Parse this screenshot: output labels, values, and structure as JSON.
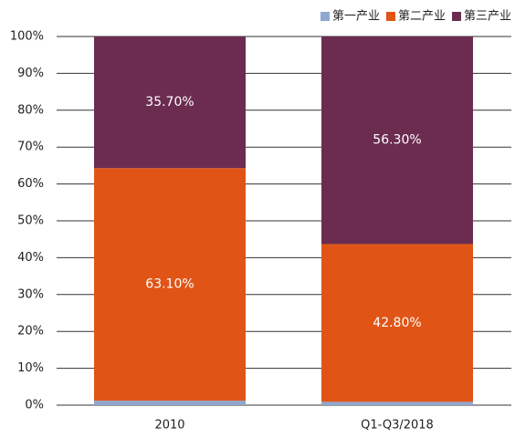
{
  "chart_data": {
    "type": "stacked_bar",
    "categories": [
      "2010",
      "Q1-Q3/2018"
    ],
    "series": [
      {
        "name": "第一产业",
        "color": "#8ea7cf",
        "values": [
          1.2,
          0.9
        ]
      },
      {
        "name": "第二产业",
        "color": "#e05516",
        "values": [
          63.1,
          42.8
        ],
        "value_labels": [
          "63.10%",
          "42.80%"
        ]
      },
      {
        "name": "第三产业",
        "color": "#6b2c50",
        "values": [
          35.7,
          56.3
        ],
        "value_labels": [
          "35.70%",
          "56.30%"
        ]
      }
    ],
    "ylim": [
      0,
      100
    ],
    "yticks": [
      {
        "value": 0,
        "label": "0%"
      },
      {
        "value": 10,
        "label": "10%"
      },
      {
        "value": 20,
        "label": "20%"
      },
      {
        "value": 30,
        "label": "30%"
      },
      {
        "value": 40,
        "label": "40%"
      },
      {
        "value": 50,
        "label": "50%"
      },
      {
        "value": 60,
        "label": "60%"
      },
      {
        "value": 70,
        "label": "70%"
      },
      {
        "value": 80,
        "label": "80%"
      },
      {
        "value": 90,
        "label": "90%"
      },
      {
        "value": 100,
        "label": "100%"
      }
    ],
    "grid": true,
    "legend": "top-right"
  }
}
